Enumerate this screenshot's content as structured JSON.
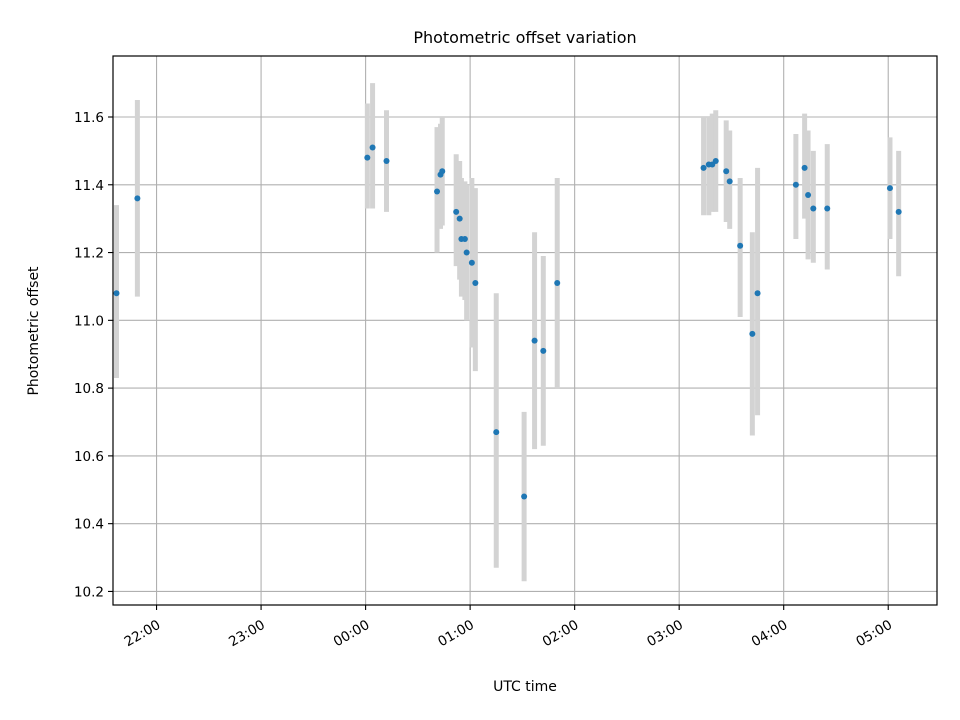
{
  "chart_data": {
    "type": "scatter",
    "title": "Photometric offset variation",
    "xlabel": "UTC time",
    "ylabel": "Photometric offset",
    "x_unit": "hours (UTC, continuing past midnight)",
    "xlim": [
      "21:35",
      "05:28"
    ],
    "ylim": [
      10.16,
      11.78
    ],
    "x_ticks": [
      "22:00",
      "23:00",
      "00:00",
      "01:00",
      "02:00",
      "03:00",
      "04:00",
      "05:00"
    ],
    "y_ticks": [
      "10.2",
      "10.4",
      "10.6",
      "10.8",
      "11.0",
      "11.2",
      "11.4",
      "11.6"
    ],
    "grid": true,
    "colors": {
      "points": "#1f77b4",
      "errorbars": "#d3d3d3",
      "grid": "#b0b0b0"
    },
    "points": [
      {
        "time": "21:37",
        "y": 11.08,
        "lo": 10.83,
        "hi": 11.34
      },
      {
        "time": "21:49",
        "y": 11.36,
        "lo": 11.07,
        "hi": 11.65
      },
      {
        "time": "00:01",
        "y": 11.48,
        "lo": 11.33,
        "hi": 11.64
      },
      {
        "time": "00:04",
        "y": 11.51,
        "lo": 11.33,
        "hi": 11.7
      },
      {
        "time": "00:12",
        "y": 11.47,
        "lo": 11.32,
        "hi": 11.62
      },
      {
        "time": "00:41",
        "y": 11.38,
        "lo": 11.2,
        "hi": 11.57
      },
      {
        "time": "00:43",
        "y": 11.43,
        "lo": 11.27,
        "hi": 11.58
      },
      {
        "time": "00:44",
        "y": 11.44,
        "lo": 11.28,
        "hi": 11.6
      },
      {
        "time": "00:52",
        "y": 11.32,
        "lo": 11.16,
        "hi": 11.49
      },
      {
        "time": "00:54",
        "y": 11.3,
        "lo": 11.12,
        "hi": 11.47
      },
      {
        "time": "00:55",
        "y": 11.24,
        "lo": 11.07,
        "hi": 11.42
      },
      {
        "time": "00:57",
        "y": 11.24,
        "lo": 11.06,
        "hi": 11.41
      },
      {
        "time": "00:58",
        "y": 11.2,
        "lo": 11.0,
        "hi": 11.4
      },
      {
        "time": "01:01",
        "y": 11.17,
        "lo": 10.92,
        "hi": 11.42
      },
      {
        "time": "01:03",
        "y": 11.11,
        "lo": 10.85,
        "hi": 11.39
      },
      {
        "time": "01:15",
        "y": 10.67,
        "lo": 10.27,
        "hi": 11.08
      },
      {
        "time": "01:31",
        "y": 10.48,
        "lo": 10.23,
        "hi": 10.73
      },
      {
        "time": "01:37",
        "y": 10.94,
        "lo": 10.62,
        "hi": 11.26
      },
      {
        "time": "01:42",
        "y": 10.91,
        "lo": 10.63,
        "hi": 11.19
      },
      {
        "time": "01:50",
        "y": 11.11,
        "lo": 10.8,
        "hi": 11.42
      },
      {
        "time": "03:14",
        "y": 11.45,
        "lo": 11.31,
        "hi": 11.6
      },
      {
        "time": "03:17",
        "y": 11.46,
        "lo": 11.31,
        "hi": 11.6
      },
      {
        "time": "03:19",
        "y": 11.46,
        "lo": 11.32,
        "hi": 11.61
      },
      {
        "time": "03:21",
        "y": 11.47,
        "lo": 11.32,
        "hi": 11.62
      },
      {
        "time": "03:27",
        "y": 11.44,
        "lo": 11.29,
        "hi": 11.59
      },
      {
        "time": "03:29",
        "y": 11.41,
        "lo": 11.27,
        "hi": 11.56
      },
      {
        "time": "03:35",
        "y": 11.22,
        "lo": 11.01,
        "hi": 11.42
      },
      {
        "time": "03:42",
        "y": 10.96,
        "lo": 10.66,
        "hi": 11.26
      },
      {
        "time": "03:45",
        "y": 11.08,
        "lo": 10.72,
        "hi": 11.45
      },
      {
        "time": "04:07",
        "y": 11.4,
        "lo": 11.24,
        "hi": 11.55
      },
      {
        "time": "04:12",
        "y": 11.45,
        "lo": 11.3,
        "hi": 11.61
      },
      {
        "time": "04:14",
        "y": 11.37,
        "lo": 11.18,
        "hi": 11.56
      },
      {
        "time": "04:17",
        "y": 11.33,
        "lo": 11.17,
        "hi": 11.5
      },
      {
        "time": "04:25",
        "y": 11.33,
        "lo": 11.15,
        "hi": 11.52
      },
      {
        "time": "05:01",
        "y": 11.39,
        "lo": 11.24,
        "hi": 11.54
      },
      {
        "time": "05:06",
        "y": 11.32,
        "lo": 11.13,
        "hi": 11.5
      }
    ]
  }
}
